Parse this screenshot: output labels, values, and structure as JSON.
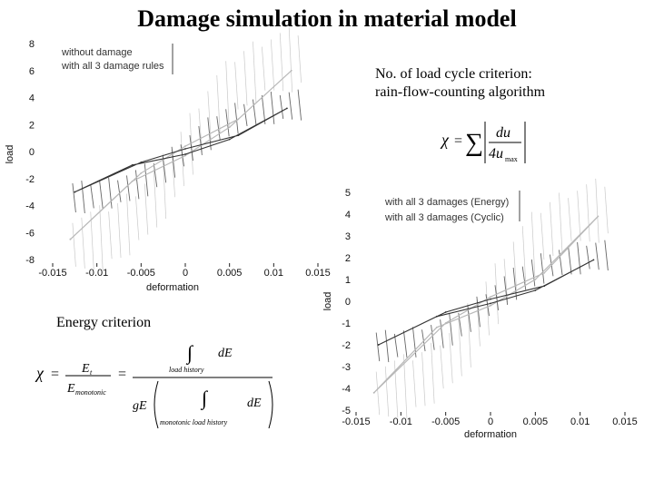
{
  "title": "Damage simulation in material model",
  "notes": {
    "cycle_criterion_line1": "No. of load cycle criterion:",
    "cycle_criterion_line2": "rain-flow-counting algorithm",
    "energy_criterion": "Energy criterion"
  },
  "formulas": {
    "chi": "χ",
    "equals": "=",
    "sum": "∑",
    "du": "du",
    "four_u": "4u",
    "u_sub": "max",
    "E": "E",
    "E_sub": "t",
    "E_mono": "E",
    "E_mono_sub": "monotonic",
    "integral": "∫",
    "dE": "dE",
    "load_history": "load history",
    "gE": "gE",
    "mono_load_history": "monotonic load history"
  },
  "chart_data": [
    {
      "type": "line",
      "xlabel": "deformation",
      "ylabel": "load",
      "xlim": [
        -0.015,
        0.015
      ],
      "ylim": [
        -8,
        8
      ],
      "x_ticks": [
        "-0.015",
        "-0.01",
        "-0.005",
        "0",
        "0.005",
        "0.01",
        "0.015"
      ],
      "y_ticks": [
        "8",
        "6",
        "4",
        "2",
        "0",
        "-2",
        "-4",
        "-6",
        "-8"
      ],
      "legend": [
        "without damage",
        "with all 3 damage rules"
      ],
      "series": [
        {
          "name": "without damage",
          "color": "#b8b8b8",
          "amplitude": 7.2,
          "x": [
            -0.013,
            -0.006,
            0.0,
            0.005,
            0.012,
            0.006,
            0.0,
            -0.005,
            -0.013
          ],
          "y": [
            -6.5,
            -2.2,
            -0.3,
            1.8,
            6.0,
            2.4,
            0.4,
            -1.6,
            -6.5
          ]
        },
        {
          "name": "with all 3 damage rules",
          "color": "#333333",
          "amplitude": 3.6,
          "x": [
            -0.0125,
            -0.006,
            0.0,
            0.005,
            0.0115,
            0.006,
            0.0,
            -0.005,
            -0.0125
          ],
          "y": [
            -3.0,
            -1.0,
            -0.2,
            0.9,
            3.2,
            1.2,
            0.2,
            -0.8,
            -3.0
          ]
        }
      ]
    },
    {
      "type": "line",
      "xlabel": "deformation",
      "ylabel": "load",
      "xlim": [
        -0.015,
        0.015
      ],
      "ylim": [
        -5,
        5
      ],
      "x_ticks": [
        "-0.015",
        "-0.01",
        "-0.005",
        "0",
        "0.005",
        "0.01",
        "0.015"
      ],
      "y_ticks": [
        "5",
        "4",
        "3",
        "2",
        "1",
        "0",
        "-1",
        "-2",
        "-3",
        "-4",
        "-5"
      ],
      "legend": [
        "with all 3 damages (Energy)",
        "with all 3 damages (Cyclic)"
      ],
      "series": [
        {
          "name": "with all 3 damages (Energy)",
          "color": "#b8b8b8",
          "amplitude": 4.4,
          "x": [
            -0.013,
            -0.006,
            0.0,
            0.005,
            0.012,
            0.006,
            0.0,
            -0.005,
            -0.013
          ],
          "y": [
            -4.2,
            -1.2,
            -0.2,
            1.0,
            3.9,
            1.3,
            0.2,
            -1.0,
            -4.2
          ]
        },
        {
          "name": "with all 3 damages (Cyclic)",
          "color": "#333333",
          "amplitude": 2.2,
          "x": [
            -0.0125,
            -0.006,
            0.0,
            0.005,
            0.0115,
            0.006,
            0.0,
            -0.005,
            -0.0125
          ],
          "y": [
            -2.0,
            -0.7,
            -0.1,
            0.5,
            1.9,
            0.7,
            0.1,
            -0.5,
            -2.0
          ]
        }
      ]
    }
  ]
}
